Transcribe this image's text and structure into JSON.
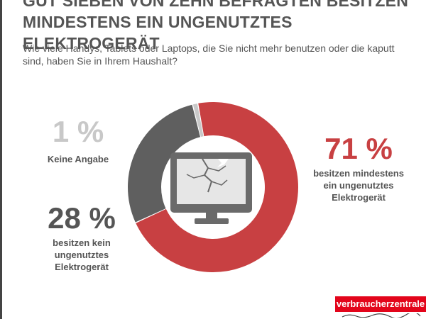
{
  "title_lines": [
    "Gut sieben von zehn Befragten besitzen",
    "mindestens ein ungenutztes Elektrogerät"
  ],
  "subtitle_lines": [
    "Wie viele Handys, Tablets oder Laptops, die Sie nicht mehr benutzen oder die kaputt",
    "sind, haben Sie in Ihrem Haushalt?"
  ],
  "labels": {
    "owns": {
      "pct": "71 %",
      "lines": [
        "besitzen mindestens",
        "ein ungenutztes",
        "Elektrogerät"
      ]
    },
    "no_answer": {
      "pct": "1 %",
      "lines": [
        "Keine Angabe"
      ]
    },
    "none": {
      "pct": "28 %",
      "lines": [
        "besitzen kein",
        "ungenutztes",
        "Elektrogerät"
      ]
    }
  },
  "brand": "verbraucherzentrale",
  "icon": "broken-monitor-icon",
  "colors": {
    "red": "#c84042",
    "dark": "#5f5f5f",
    "light": "#c8c8c8",
    "brand_red": "#e3051b",
    "text": "#555555"
  },
  "chart_data": {
    "type": "pie",
    "style": "donut",
    "slices": [
      {
        "label": "besitzen mindestens ein ungenutztes Elektrogerät",
        "value": 71,
        "color": "#c84042"
      },
      {
        "label": "besitzen kein ungenutztes Elektrogerät",
        "value": 28,
        "color": "#5f5f5f"
      },
      {
        "label": "Keine Angabe",
        "value": 1,
        "color": "#c8c8c8"
      }
    ],
    "title": "Gut sieben von zehn Befragten besitzen mindestens ein ungenutztes Elektrogerät",
    "unit": "%"
  }
}
